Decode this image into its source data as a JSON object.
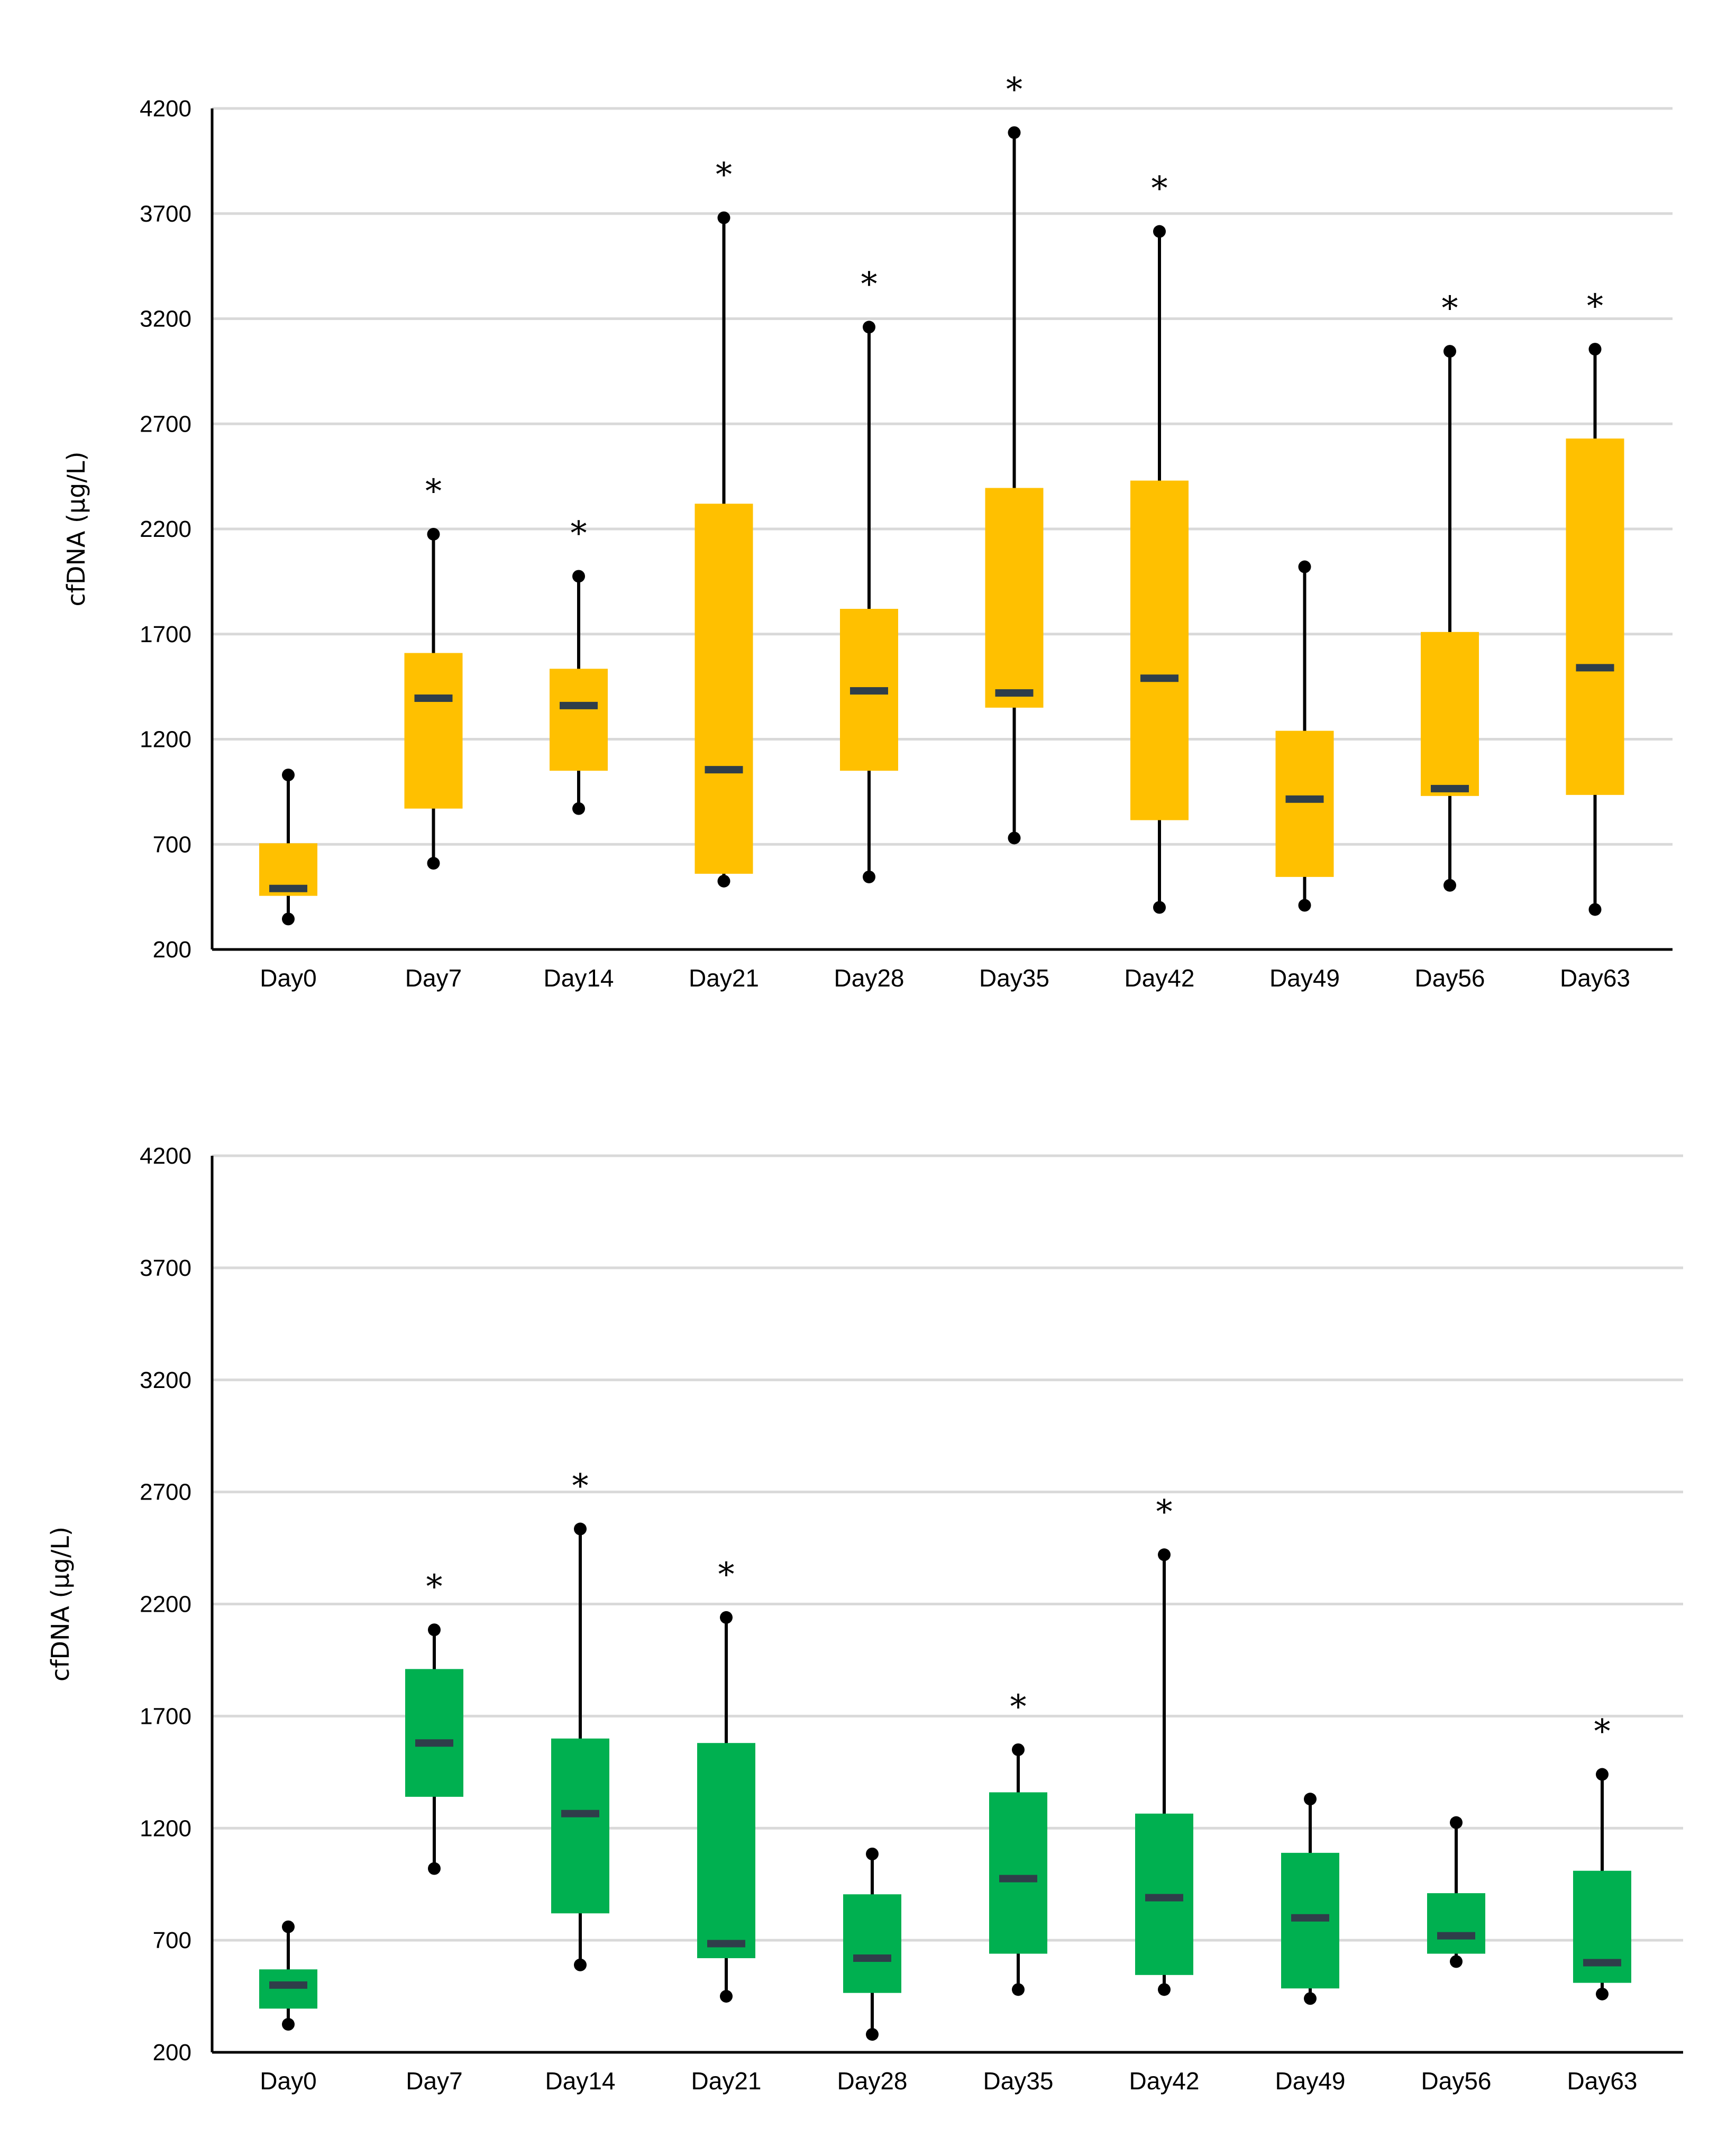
{
  "colors": {
    "gridline": "#d9d9d9",
    "axis": "#000000",
    "whisker": "#000000",
    "median": "#2f3e4a"
  },
  "chart_data": [
    {
      "type": "box",
      "ylabel": "cfDNA (µg/L)",
      "ylim": [
        200,
        4200
      ],
      "yticks": [
        200,
        700,
        1200,
        1700,
        2200,
        2700,
        3200,
        3700,
        4200
      ],
      "grid": true,
      "box_color": "#ffc000",
      "categories": [
        "Day0",
        "Day7",
        "Day14",
        "Day21",
        "Day28",
        "Day35",
        "Day42",
        "Day49",
        "Day56",
        "Day63"
      ],
      "boxes": [
        {
          "min": 345,
          "q1": 455,
          "median": 490,
          "q3": 705,
          "max": 1030,
          "significant": false
        },
        {
          "min": 610,
          "q1": 870,
          "median": 1395,
          "q3": 1610,
          "max": 2175,
          "significant": true
        },
        {
          "min": 870,
          "q1": 1050,
          "median": 1360,
          "q3": 1535,
          "max": 1975,
          "significant": true
        },
        {
          "min": 525,
          "q1": 560,
          "median": 1055,
          "q3": 2320,
          "max": 3680,
          "significant": true
        },
        {
          "min": 545,
          "q1": 1050,
          "median": 1430,
          "q3": 1820,
          "max": 3160,
          "significant": true
        },
        {
          "min": 730,
          "q1": 1350,
          "median": 1420,
          "q3": 2395,
          "max": 4085,
          "significant": true
        },
        {
          "min": 400,
          "q1": 815,
          "median": 1490,
          "q3": 2430,
          "max": 3615,
          "significant": true
        },
        {
          "min": 410,
          "q1": 545,
          "median": 915,
          "q3": 1240,
          "max": 2020,
          "significant": false
        },
        {
          "min": 505,
          "q1": 930,
          "median": 965,
          "q3": 1710,
          "max": 3045,
          "significant": true
        },
        {
          "min": 390,
          "q1": 935,
          "median": 1540,
          "q3": 2630,
          "max": 3055,
          "significant": true
        }
      ]
    },
    {
      "type": "box",
      "ylabel": "cfDNA (µg/L)",
      "ylim": [
        200,
        4200
      ],
      "yticks": [
        200,
        700,
        1200,
        1700,
        2200,
        2700,
        3200,
        3700,
        4200
      ],
      "grid": true,
      "box_color": "#00b050",
      "categories": [
        "Day0",
        "Day7",
        "Day14",
        "Day21",
        "Day28",
        "Day35",
        "Day42",
        "Day49",
        "Day56",
        "Day63"
      ],
      "boxes": [
        {
          "min": 325,
          "q1": 395,
          "median": 500,
          "q3": 570,
          "max": 760,
          "significant": false
        },
        {
          "min": 1020,
          "q1": 1340,
          "median": 1580,
          "q3": 1910,
          "max": 2085,
          "significant": true
        },
        {
          "min": 590,
          "q1": 820,
          "median": 1265,
          "q3": 1600,
          "max": 2535,
          "significant": true
        },
        {
          "min": 450,
          "q1": 620,
          "median": 685,
          "q3": 1580,
          "max": 2140,
          "significant": true
        },
        {
          "min": 280,
          "q1": 465,
          "median": 620,
          "q3": 905,
          "max": 1085,
          "significant": false
        },
        {
          "min": 480,
          "q1": 640,
          "median": 975,
          "q3": 1360,
          "max": 1550,
          "significant": true
        },
        {
          "min": 480,
          "q1": 545,
          "median": 890,
          "q3": 1265,
          "max": 2420,
          "significant": true
        },
        {
          "min": 440,
          "q1": 485,
          "median": 800,
          "q3": 1090,
          "max": 1330,
          "significant": false
        },
        {
          "min": 605,
          "q1": 640,
          "median": 720,
          "q3": 910,
          "max": 1225,
          "significant": false
        },
        {
          "min": 460,
          "q1": 510,
          "median": 600,
          "q3": 1010,
          "max": 1440,
          "significant": true
        }
      ]
    }
  ]
}
